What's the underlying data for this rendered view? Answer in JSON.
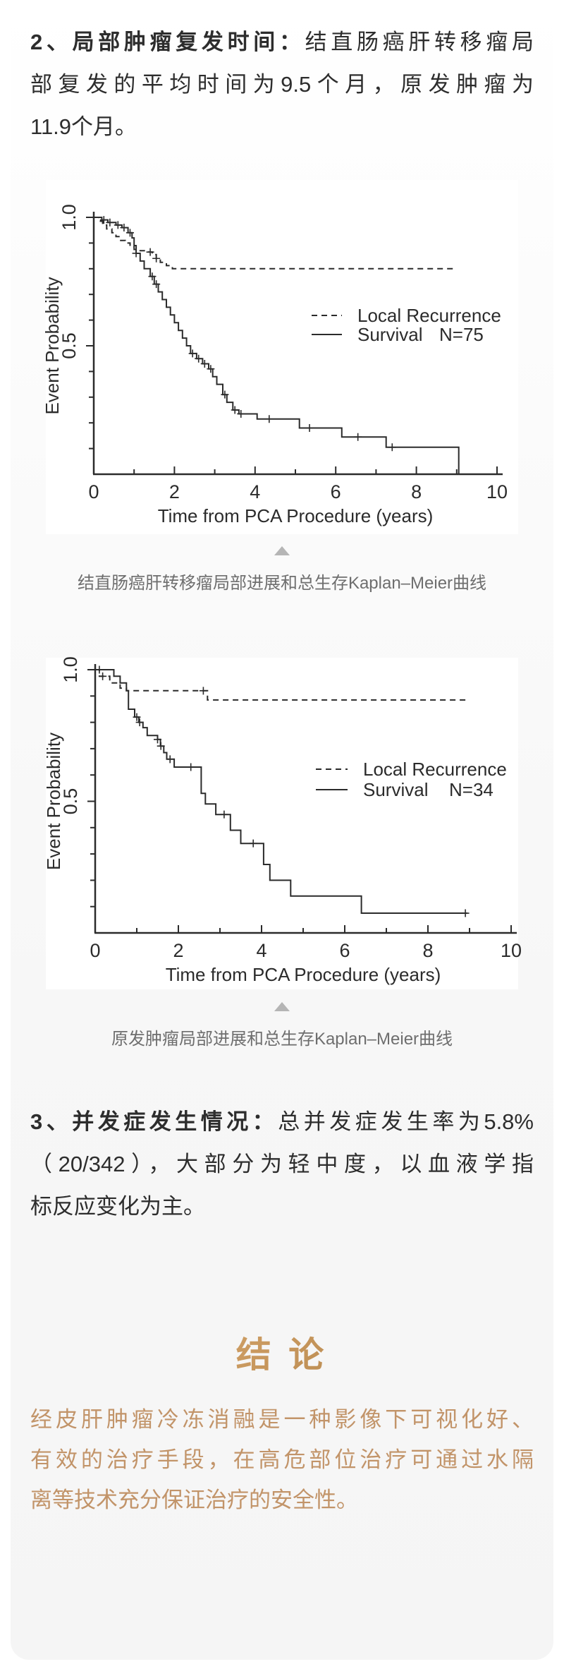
{
  "paragraph2": {
    "heading": "2、局部肿瘤复发时间：",
    "lines": [
      "结直肠癌肝转移瘤局",
      "部复发的平均时间为9.5个月，原发肿瘤为",
      "11.9个月。"
    ]
  },
  "paragraph3": {
    "heading": "3、并发症发生情况：",
    "lines": [
      "总并发症发生率为5.8%",
      "（20/342），大部分为轻中度，以血液学指",
      "标反应变化为主。"
    ]
  },
  "captions": {
    "chart1": "结直肠癌肝转移瘤局部进展和总生存Kaplan–Meier曲线",
    "chart2": "原发肿瘤局部进展和总生存Kaplan–Meier曲线"
  },
  "conclusion": {
    "title": "结 论",
    "title_color_top": "#e0b47d",
    "title_color_bottom": "#a87a40",
    "text_color": "#c29469",
    "lines": [
      "经皮肝肿瘤冷冻消融是一种影像下可视化好、",
      "有效的治疗手段，在高危部位治疗可通过水隔",
      "离等技术充分保证治疗的安全性。"
    ]
  },
  "colors": {
    "body_text": "#2d2d2d",
    "caption_text": "#6e6e6e",
    "caption_pointer": "#b5b5b5",
    "card_bg": "#f5f5f5",
    "chart_ink": "#2b2b2b",
    "panel_bg": "#ffffff"
  },
  "chart_data": [
    {
      "type": "line",
      "subtype": "kaplan-meier-step",
      "title": "结直肠癌肝转移瘤局部进展和总生存Kaplan–Meier曲线",
      "xlabel": "Time from PCA Procedure (years)",
      "ylabel": "Event Probability",
      "xlim": [
        0,
        10
      ],
      "ylim": [
        0,
        1.0
      ],
      "xticks_major": [
        0,
        2,
        4,
        6,
        8,
        10
      ],
      "xticks_minor": [
        1,
        3,
        5,
        7,
        9
      ],
      "yticks_labeled": [
        1.0,
        0.5
      ],
      "ytick_minor_step": 0.1,
      "grid": false,
      "legend_position": "center-right",
      "legend": [
        {
          "label": "Local Recurrence",
          "style": "dashed"
        },
        {
          "label": "Survival",
          "n": "N=75",
          "style": "solid"
        }
      ],
      "series": [
        {
          "name": "Local Recurrence",
          "style": "dashed",
          "points": [
            [
              0,
              1.0
            ],
            [
              0.12,
              0.985
            ],
            [
              0.22,
              0.97
            ],
            [
              0.32,
              0.955
            ],
            [
              0.45,
              0.94
            ],
            [
              0.55,
              0.925
            ],
            [
              0.65,
              0.91
            ],
            [
              0.78,
              0.9
            ],
            [
              0.9,
              0.885
            ],
            [
              1.0,
              0.875
            ],
            [
              1.15,
              0.87
            ],
            [
              1.3,
              0.865
            ],
            [
              1.45,
              0.855
            ],
            [
              1.55,
              0.84
            ],
            [
              1.65,
              0.825
            ],
            [
              1.8,
              0.812
            ],
            [
              1.95,
              0.8
            ],
            [
              9.0,
              0.8
            ]
          ],
          "censors": [
            1.4,
            1.55
          ]
        },
        {
          "name": "Survival",
          "n": 75,
          "style": "solid",
          "points": [
            [
              0,
              1.0
            ],
            [
              0.2,
              0.99
            ],
            [
              0.35,
              0.98
            ],
            [
              0.55,
              0.97
            ],
            [
              0.7,
              0.96
            ],
            [
              0.85,
              0.94
            ],
            [
              0.95,
              0.92
            ],
            [
              1.0,
              0.89
            ],
            [
              1.05,
              0.86
            ],
            [
              1.15,
              0.83
            ],
            [
              1.25,
              0.8
            ],
            [
              1.4,
              0.77
            ],
            [
              1.5,
              0.74
            ],
            [
              1.6,
              0.71
            ],
            [
              1.7,
              0.68
            ],
            [
              1.8,
              0.65
            ],
            [
              1.9,
              0.62
            ],
            [
              2.0,
              0.59
            ],
            [
              2.1,
              0.56
            ],
            [
              2.2,
              0.53
            ],
            [
              2.3,
              0.5
            ],
            [
              2.4,
              0.47
            ],
            [
              2.55,
              0.45
            ],
            [
              2.7,
              0.43
            ],
            [
              2.85,
              0.41
            ],
            [
              2.95,
              0.38
            ],
            [
              3.05,
              0.35
            ],
            [
              3.2,
              0.31
            ],
            [
              3.3,
              0.28
            ],
            [
              3.45,
              0.25
            ],
            [
              3.6,
              0.235
            ],
            [
              4.05,
              0.215
            ],
            [
              5.1,
              0.18
            ],
            [
              6.15,
              0.145
            ],
            [
              7.25,
              0.105
            ],
            [
              9.05,
              0.105
            ],
            [
              9.05,
              0.0
            ]
          ],
          "censors": [
            0.25,
            0.4,
            0.6,
            0.75,
            0.9,
            1.05,
            1.45,
            1.55,
            2.45,
            2.6,
            2.75,
            2.9,
            3.25,
            3.5,
            3.65,
            4.35,
            5.35,
            6.55,
            7.4
          ]
        }
      ]
    },
    {
      "type": "line",
      "subtype": "kaplan-meier-step",
      "title": "原发肿瘤局部进展和总生存Kaplan–Meier曲线",
      "xlabel": "Time from PCA Procedure (years)",
      "ylabel": "Event Probability",
      "xlim": [
        0,
        10
      ],
      "ylim": [
        0,
        1.0
      ],
      "xticks_major": [
        0,
        2,
        4,
        6,
        8,
        10
      ],
      "xticks_minor": [
        1,
        3,
        5,
        7,
        9
      ],
      "yticks_labeled": [
        1.0,
        0.5
      ],
      "ytick_minor_step": 0.1,
      "grid": false,
      "legend_position": "center-right",
      "legend": [
        {
          "label": "Local Recurrence",
          "style": "dashed"
        },
        {
          "label": "Survival",
          "n": "N=34",
          "style": "solid"
        }
      ],
      "series": [
        {
          "name": "Local Recurrence",
          "style": "dashed",
          "points": [
            [
              0,
              1.0
            ],
            [
              0.1,
              0.975
            ],
            [
              0.35,
              0.95
            ],
            [
              0.6,
              0.93
            ],
            [
              0.75,
              0.92
            ],
            [
              2.7,
              0.885
            ],
            [
              8.9,
              0.885
            ]
          ],
          "censors": [
            0.18,
            2.6
          ]
        },
        {
          "name": "Survival",
          "n": 34,
          "style": "solid",
          "points": [
            [
              0,
              1.0
            ],
            [
              0.45,
              0.975
            ],
            [
              0.6,
              0.95
            ],
            [
              0.75,
              0.92
            ],
            [
              0.8,
              0.85
            ],
            [
              0.95,
              0.82
            ],
            [
              1.05,
              0.8
            ],
            [
              1.15,
              0.78
            ],
            [
              1.25,
              0.75
            ],
            [
              1.5,
              0.735
            ],
            [
              1.57,
              0.71
            ],
            [
              1.65,
              0.685
            ],
            [
              1.72,
              0.66
            ],
            [
              1.9,
              0.63
            ],
            [
              2.55,
              0.53
            ],
            [
              2.65,
              0.49
            ],
            [
              2.9,
              0.45
            ],
            [
              3.25,
              0.39
            ],
            [
              3.5,
              0.34
            ],
            [
              4.05,
              0.26
            ],
            [
              4.2,
              0.2
            ],
            [
              4.7,
              0.14
            ],
            [
              6.4,
              0.075
            ],
            [
              8.95,
              0.075
            ]
          ],
          "censors": [
            0.1,
            1.0,
            1.07,
            1.5,
            1.58,
            1.8,
            2.3,
            3.1,
            3.8,
            8.9
          ]
        }
      ]
    }
  ]
}
